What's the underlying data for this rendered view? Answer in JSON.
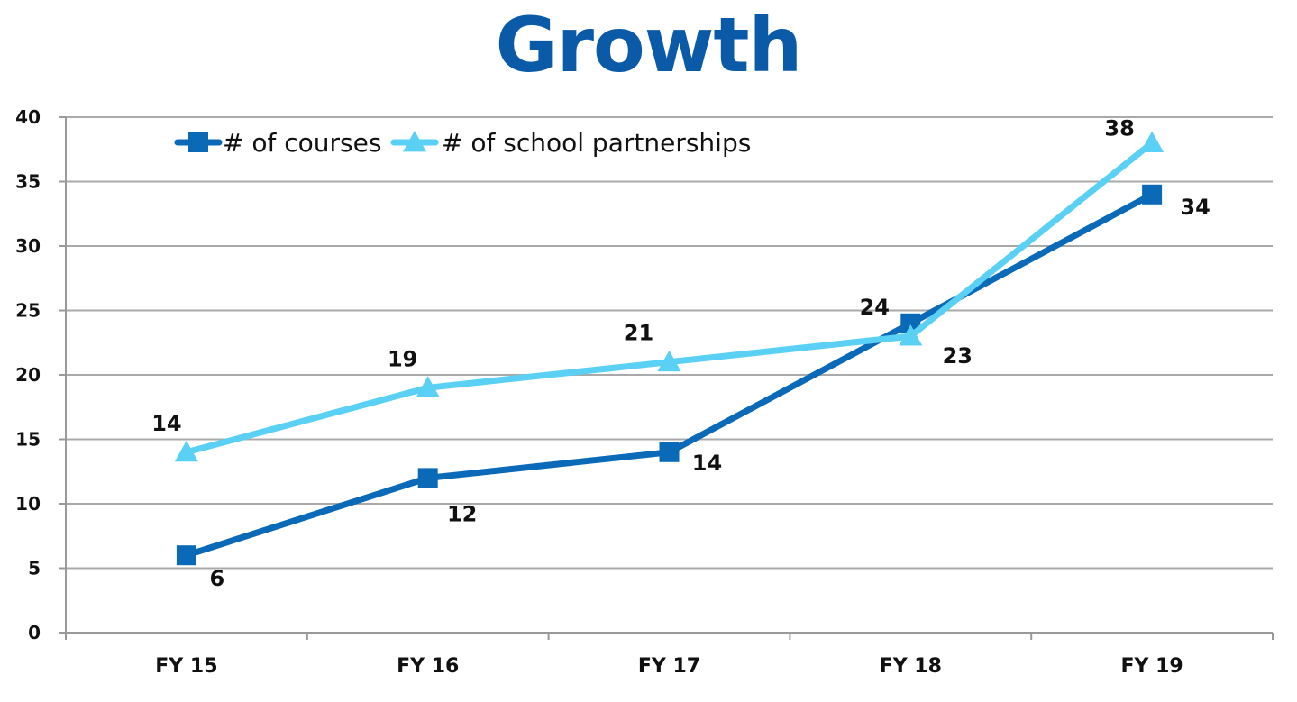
{
  "chart_data": {
    "type": "line",
    "title": "Growth",
    "xlabel": "",
    "ylabel": "",
    "categories": [
      "FY 15",
      "FY 16",
      "FY 17",
      "FY 18",
      "FY 19"
    ],
    "ylim": [
      0,
      40
    ],
    "yticks": [
      "0",
      "5",
      "10",
      "15",
      "20",
      "25",
      "30",
      "35",
      "40"
    ],
    "grid": true,
    "legend_position": "top-left",
    "series": [
      {
        "name": "# of courses",
        "values": [
          6,
          12,
          14,
          24,
          34
        ],
        "color": "#0a6ab8",
        "marker": "square",
        "labels": [
          "6",
          "12",
          "14",
          "24",
          "34"
        ]
      },
      {
        "name": "# of school partnerships",
        "values": [
          14,
          19,
          21,
          23,
          38
        ],
        "color": "#5bd0f5",
        "marker": "triangle",
        "labels": [
          "14",
          "19",
          "21",
          "23",
          "38"
        ]
      }
    ]
  },
  "colors": {
    "title": "#0a5aa8",
    "grid": "#a9a9a9",
    "axis": "#999999"
  }
}
